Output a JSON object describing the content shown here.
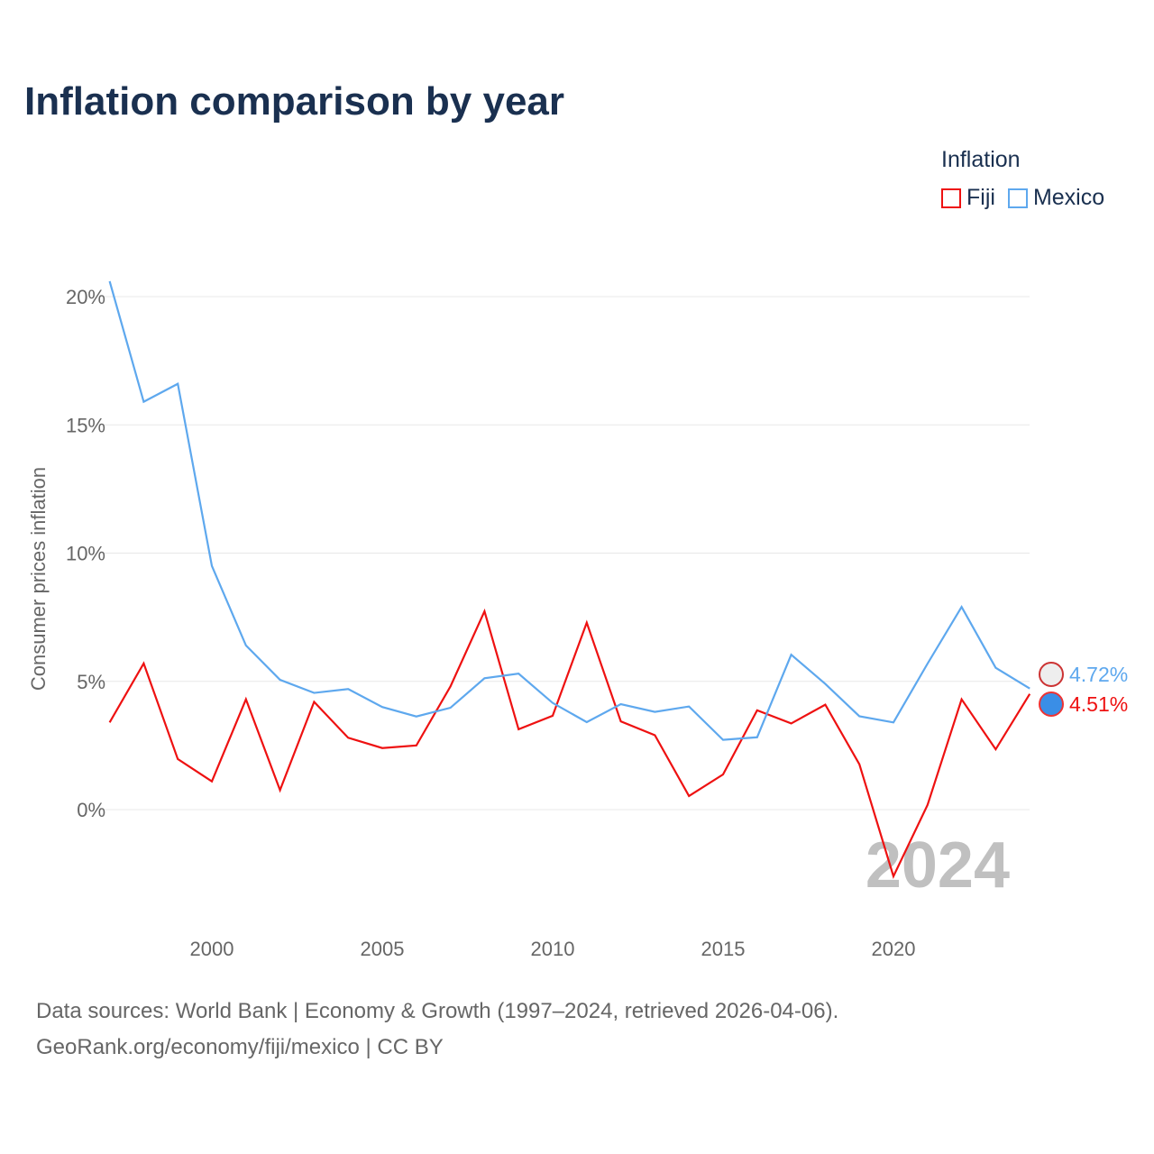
{
  "chart_data": {
    "type": "line",
    "title": "Inflation comparison by year",
    "ylabel": "Consumer prices inflation",
    "xlabel": "",
    "legend_title": "Inflation",
    "legend_position": "top-right",
    "ylim": [
      -3.5,
      21
    ],
    "xlim": [
      1997,
      2024
    ],
    "yticks": [
      0,
      5,
      10,
      15,
      20
    ],
    "ytick_labels": [
      "0%",
      "5%",
      "10%",
      "15%",
      "20%"
    ],
    "xticks": [
      2000,
      2005,
      2010,
      2015,
      2020
    ],
    "xtick_labels": [
      "2000",
      "2005",
      "2010",
      "2015",
      "2020"
    ],
    "watermark_year": "2024",
    "x": [
      1997,
      1998,
      1999,
      2000,
      2001,
      2002,
      2003,
      2004,
      2005,
      2006,
      2007,
      2008,
      2009,
      2010,
      2011,
      2012,
      2013,
      2014,
      2015,
      2016,
      2017,
      2018,
      2019,
      2020,
      2021,
      2022,
      2023,
      2024
    ],
    "series": [
      {
        "name": "Fiji",
        "color": "#ee1111",
        "end_label": "4.51%",
        "values": [
          3.4,
          5.7,
          1.97,
          1.1,
          4.3,
          0.76,
          4.2,
          2.8,
          2.4,
          2.5,
          4.8,
          7.73,
          3.13,
          3.66,
          7.29,
          3.44,
          2.9,
          0.53,
          1.37,
          3.87,
          3.36,
          4.09,
          1.77,
          -2.6,
          0.18,
          4.3,
          2.35,
          4.51
        ]
      },
      {
        "name": "Mexico",
        "color": "#5ea8ee",
        "end_label": "4.72%",
        "values": [
          20.6,
          15.9,
          16.6,
          9.5,
          6.4,
          5.06,
          4.55,
          4.7,
          4.0,
          3.63,
          3.97,
          5.12,
          5.3,
          4.16,
          3.41,
          4.11,
          3.81,
          4.02,
          2.72,
          2.82,
          6.04,
          4.9,
          3.64,
          3.4,
          5.69,
          7.9,
          5.53,
          4.72
        ]
      }
    ]
  },
  "source_line1": "Data sources: World Bank | Economy & Growth (1997–2024, retrieved 2026-04-06).",
  "source_line2": "GeoRank.org/economy/fiji/mexico | CC BY"
}
